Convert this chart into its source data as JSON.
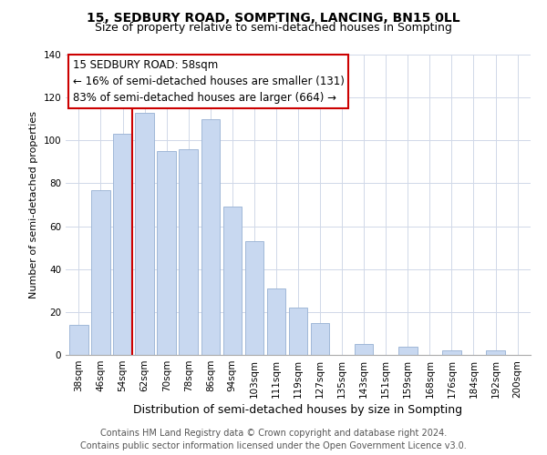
{
  "title": "15, SEDBURY ROAD, SOMPTING, LANCING, BN15 0LL",
  "subtitle": "Size of property relative to semi-detached houses in Sompting",
  "xlabel": "Distribution of semi-detached houses by size in Sompting",
  "ylabel": "Number of semi-detached properties",
  "bar_labels": [
    "38sqm",
    "46sqm",
    "54sqm",
    "62sqm",
    "70sqm",
    "78sqm",
    "86sqm",
    "94sqm",
    "103sqm",
    "111sqm",
    "119sqm",
    "127sqm",
    "135sqm",
    "143sqm",
    "151sqm",
    "159sqm",
    "168sqm",
    "176sqm",
    "184sqm",
    "192sqm",
    "200sqm"
  ],
  "bar_values": [
    14,
    77,
    103,
    113,
    95,
    96,
    110,
    69,
    53,
    31,
    22,
    15,
    0,
    5,
    0,
    4,
    0,
    2,
    0,
    2,
    0
  ],
  "bar_color": "#c8d8f0",
  "bar_edge_color": "#a0b8d8",
  "highlight_bar_index": 2,
  "highlight_line_color": "#cc0000",
  "ylim": [
    0,
    140
  ],
  "yticks": [
    0,
    20,
    40,
    60,
    80,
    100,
    120,
    140
  ],
  "annotation_title": "15 SEDBURY ROAD: 58sqm",
  "annotation_line1": "← 16% of semi-detached houses are smaller (131)",
  "annotation_line2": "83% of semi-detached houses are larger (664) →",
  "annotation_box_color": "#ffffff",
  "annotation_box_edge_color": "#cc0000",
  "footer_line1": "Contains HM Land Registry data © Crown copyright and database right 2024.",
  "footer_line2": "Contains public sector information licensed under the Open Government Licence v3.0.",
  "background_color": "#ffffff",
  "grid_color": "#d0d8e8",
  "title_fontsize": 10,
  "subtitle_fontsize": 9,
  "xlabel_fontsize": 9,
  "ylabel_fontsize": 8,
  "tick_fontsize": 7.5,
  "footer_fontsize": 7,
  "annotation_fontsize": 8.5
}
